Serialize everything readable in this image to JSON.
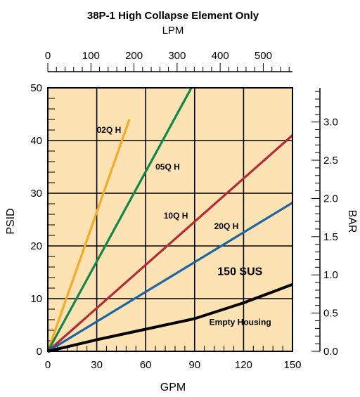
{
  "chart_data": {
    "type": "line",
    "title": "38P-1 High Collapse Element Only",
    "top_axis_label": "LPM",
    "xlabel": "GPM",
    "ylabel": "PSID",
    "right_axis_label": "BAR",
    "x_ticks": [
      "0",
      "30",
      "60",
      "90",
      "120",
      "150"
    ],
    "y_ticks": [
      "0",
      "10",
      "20",
      "30",
      "40",
      "50"
    ],
    "top_ticks": [
      "0",
      "100",
      "200",
      "300",
      "400",
      "500"
    ],
    "right_ticks": [
      "0.0",
      "0.5",
      "1.0",
      "1.5",
      "2.0",
      "2.5",
      "3.0"
    ],
    "xlim": [
      0,
      150
    ],
    "ylim": [
      0,
      50
    ],
    "top_lim": [
      0,
      567.8
    ],
    "right_lim": [
      0,
      3.447
    ],
    "plot_background": "#fde3b3",
    "grid": true,
    "series": [
      {
        "name": "02Q H",
        "color": "#f8a92a",
        "x": [
          0,
          50
        ],
        "y": [
          0,
          44
        ]
      },
      {
        "name": "05Q H",
        "color": "#12854a",
        "x": [
          0,
          88
        ],
        "y": [
          0,
          50
        ]
      },
      {
        "name": "10Q H",
        "color": "#b52a36",
        "x": [
          0,
          150
        ],
        "y": [
          0,
          41
        ]
      },
      {
        "name": "20Q H",
        "color": "#1d64a3",
        "x": [
          0,
          150
        ],
        "y": [
          0,
          28.2
        ]
      },
      {
        "name": "Empty Housing",
        "color": "#000000",
        "x": [
          0,
          30,
          60,
          90,
          120,
          150
        ],
        "y": [
          0,
          2.2,
          4.2,
          6.2,
          9.2,
          12.7
        ]
      }
    ],
    "annotations": [
      {
        "text": "02Q H",
        "x": 30,
        "y": 41.5
      },
      {
        "text": "05Q H",
        "x": 66,
        "y": 34.5
      },
      {
        "text": "10Q H",
        "x": 71,
        "y": 25.2
      },
      {
        "text": "20Q H",
        "x": 102,
        "y": 23.2
      },
      {
        "text": "150 SUS",
        "x": 104,
        "y": 14.5
      },
      {
        "text": "Empty Housing",
        "x": 99,
        "y": 5
      }
    ]
  }
}
